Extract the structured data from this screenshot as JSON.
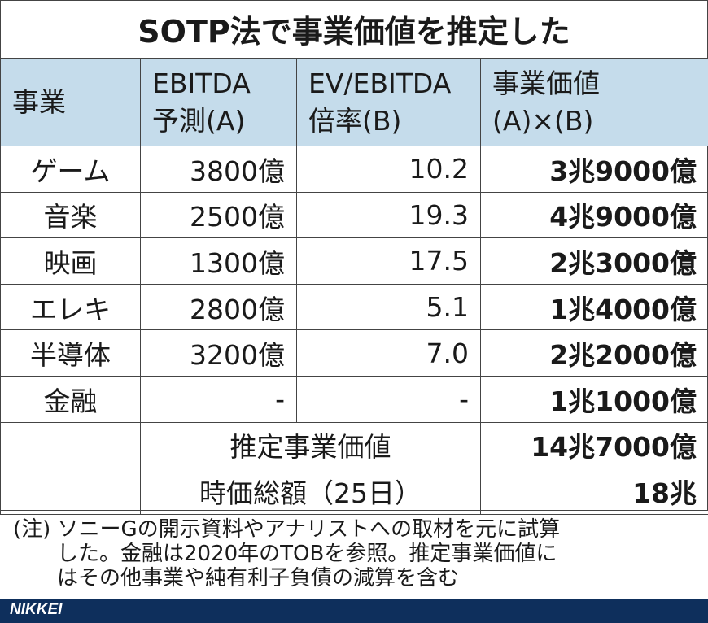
{
  "title": "SOTP法で事業価値を推定した",
  "header": {
    "col0": "事業",
    "col1_l1": "EBITDA",
    "col1_l2": "予測(A)",
    "col2_l1": "EV/EBITDA",
    "col2_l2": "倍率(B)",
    "col3_l1": "事業価値",
    "col3_l2": "(A)×(B)"
  },
  "rows": [
    {
      "biz": "ゲーム",
      "ebitda": "3800億",
      "multiple": "10.2",
      "value": "3兆9000億"
    },
    {
      "biz": "音楽",
      "ebitda": "2500億",
      "multiple": "19.3",
      "value": "4兆9000億"
    },
    {
      "biz": "映画",
      "ebitda": "1300億",
      "multiple": "17.5",
      "value": "2兆3000億"
    },
    {
      "biz": "エレキ",
      "ebitda": "2800億",
      "multiple": "5.1",
      "value": "1兆4000億"
    },
    {
      "biz": "半導体",
      "ebitda": "3200億",
      "multiple": "7.0",
      "value": "2兆2000億"
    },
    {
      "biz": "金融",
      "ebitda": "-",
      "multiple": "-",
      "value": "1兆1000億"
    }
  ],
  "summary": [
    {
      "label": "推定事業価値",
      "value": "14兆7000億"
    },
    {
      "label": "時価総額（25日）",
      "value": "18兆"
    }
  ],
  "note": {
    "line1": "(注) ソニーGの開示資料やアナリストへの取材を元に試算",
    "line2": "した。金融は2020年のTOBを参照。推定事業価値に",
    "line3": "はその他事業や純有利子負債の減算を含む"
  },
  "footer": {
    "logo": "NIKKEI",
    "color": "#0e2f5c"
  }
}
